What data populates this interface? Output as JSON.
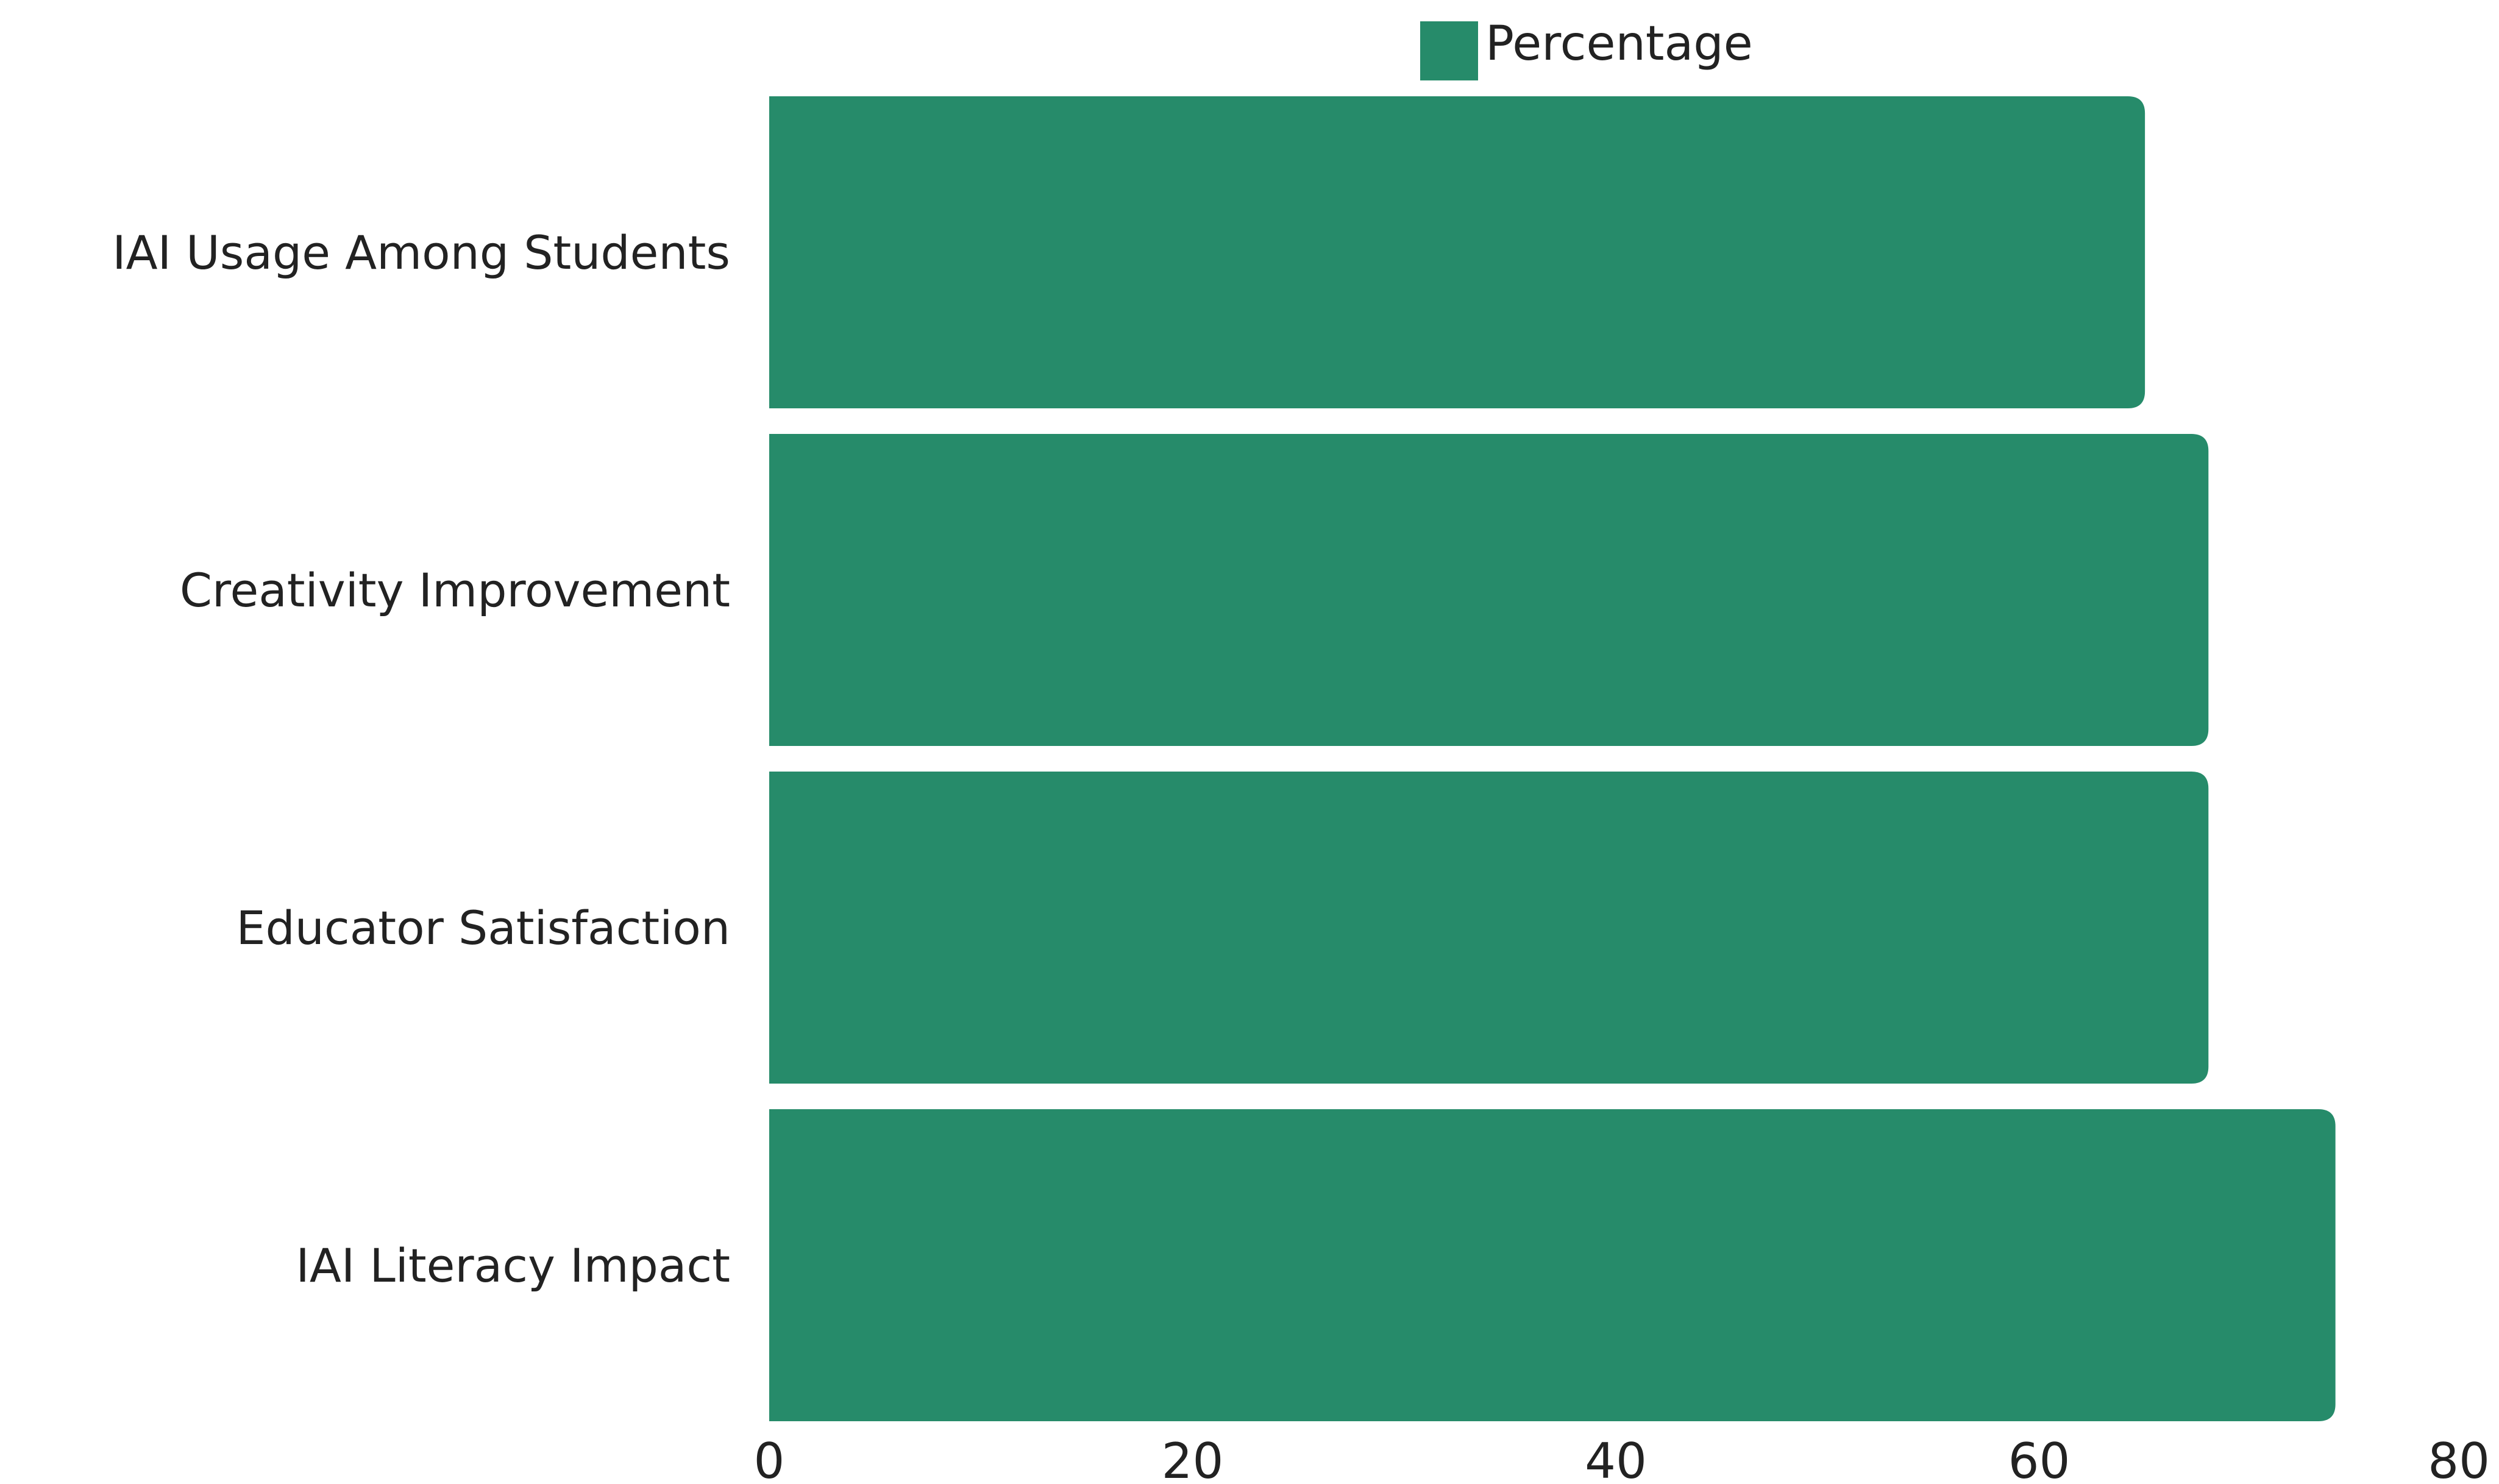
{
  "chart_data": {
    "type": "bar",
    "orientation": "horizontal",
    "categories": [
      "IAI Usage Among Students",
      "Creativity Improvement",
      "Educator Satisfaction",
      "IAI Literacy Impact"
    ],
    "series": [
      {
        "name": "Percentage",
        "values": [
          65,
          68,
          68,
          74
        ]
      }
    ],
    "xlim": [
      0,
      80
    ],
    "xticks": [
      "0",
      "20",
      "40",
      "60",
      "80"
    ],
    "grid": false,
    "legend": "top-center",
    "colors": {
      "bar": "#268b6a",
      "text": "#222222"
    }
  }
}
